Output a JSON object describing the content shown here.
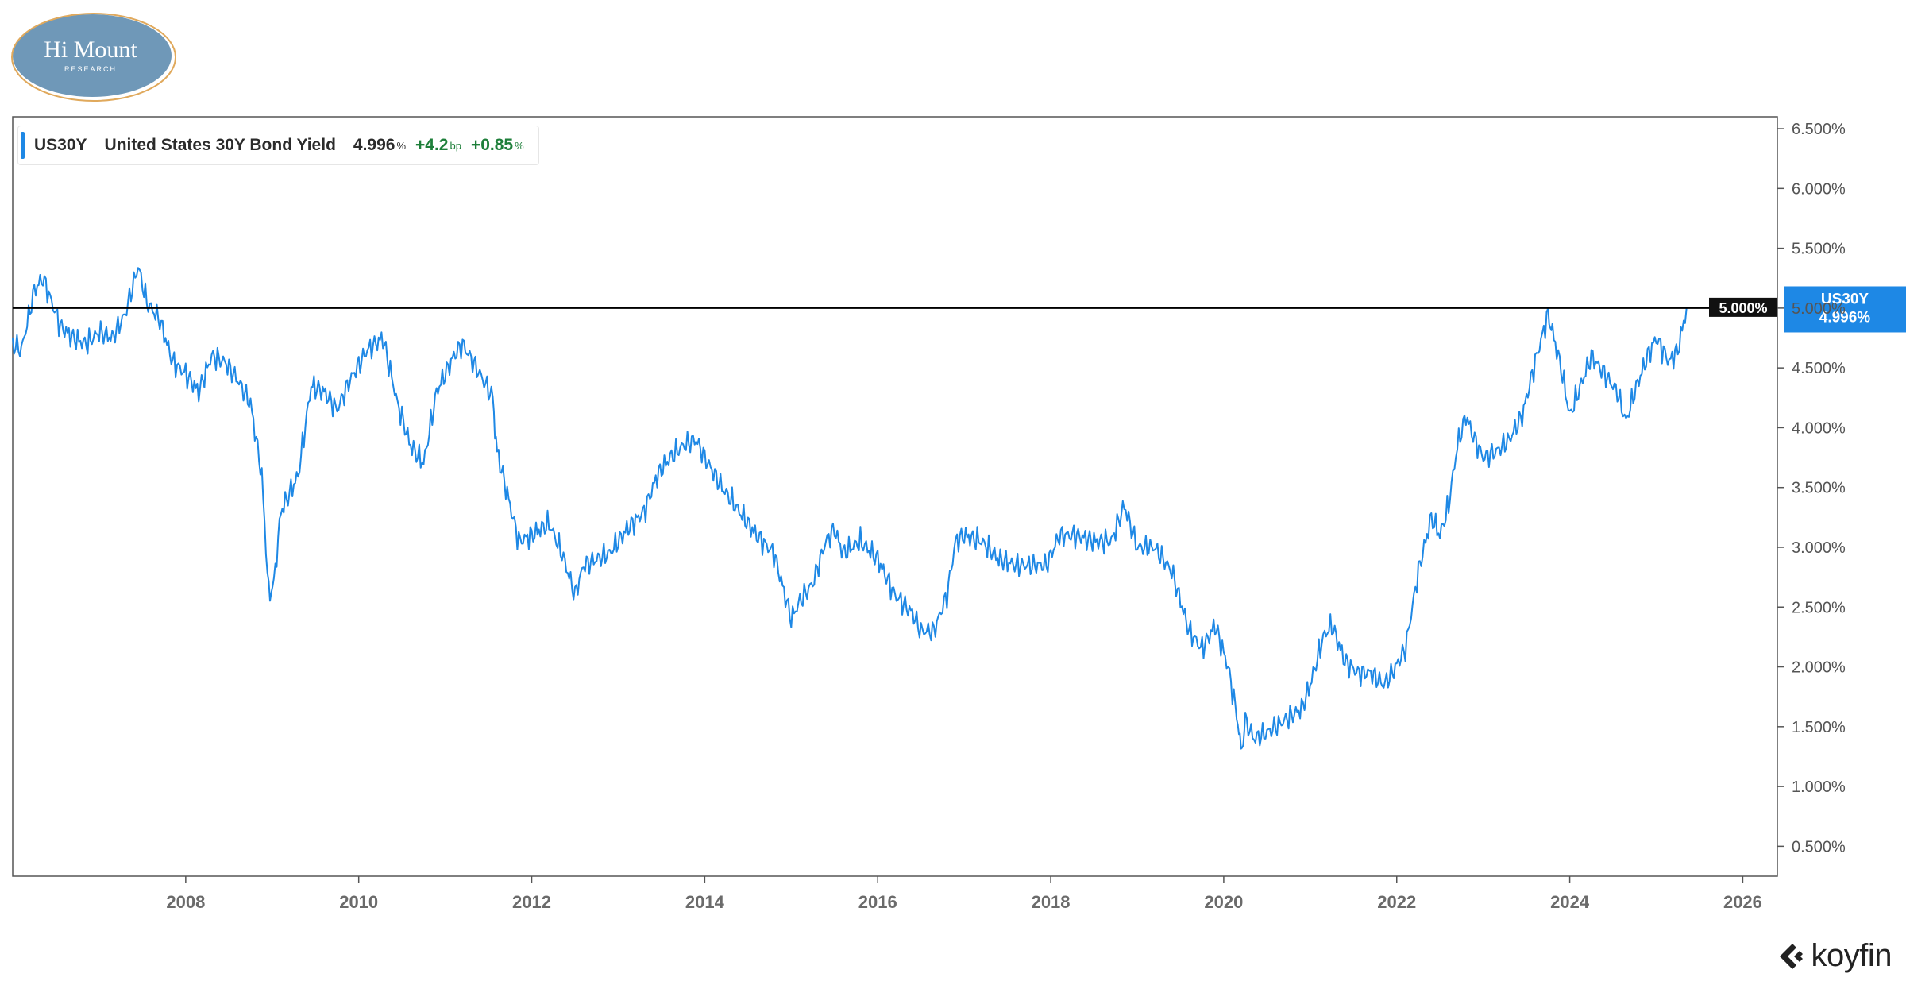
{
  "logo": {
    "line1": "Hi Mount",
    "line2": "RESEARCH"
  },
  "legend": {
    "ticker": "US30Y",
    "name": "United States 30Y Bond Yield",
    "value": "4.996",
    "value_unit": "%",
    "change_bp": "+4.2",
    "change_bp_unit": "bp",
    "change_pct": "+0.85",
    "change_pct_unit": "%"
  },
  "reference_line": {
    "value": 5.0,
    "label": "5.000%"
  },
  "last_tag": {
    "ticker": "US30Y",
    "value": "4.996%"
  },
  "brand": "koyfin",
  "colors": {
    "series": "#1e88e5",
    "reference": "#000000",
    "tag_bg": "#1e88e5",
    "refl_bg": "#111111",
    "positive": "#1e7f3a"
  },
  "chart_data": {
    "type": "line",
    "title": "",
    "xlabel": "",
    "ylabel": "",
    "xlim": [
      2006.0,
      2026.4
    ],
    "ylim": [
      0.25,
      6.6
    ],
    "x_ticks": [
      2008,
      2010,
      2012,
      2014,
      2016,
      2018,
      2020,
      2022,
      2024,
      2026
    ],
    "y_ticks": [
      0.5,
      1.0,
      1.5,
      2.0,
      2.5,
      3.0,
      3.5,
      4.0,
      4.5,
      5.0,
      5.5,
      6.0,
      6.5
    ],
    "y_tick_labels": [
      "0.500%",
      "1.000%",
      "1.500%",
      "2.000%",
      "2.500%",
      "3.000%",
      "3.500%",
      "4.000%",
      "4.500%",
      "5.000%",
      "5.500%",
      "6.000%",
      "6.500%"
    ],
    "series": [
      {
        "name": "US30Y",
        "x": [
          2006.0,
          2006.1,
          2006.25,
          2006.35,
          2006.45,
          2006.55,
          2006.7,
          2006.85,
          2007.0,
          2007.15,
          2007.3,
          2007.45,
          2007.55,
          2007.7,
          2007.85,
          2008.0,
          2008.15,
          2008.3,
          2008.45,
          2008.6,
          2008.75,
          2008.88,
          2008.96,
          2009.02,
          2009.1,
          2009.3,
          2009.45,
          2009.6,
          2009.75,
          2009.9,
          2010.1,
          2010.28,
          2010.45,
          2010.6,
          2010.75,
          2010.9,
          2011.1,
          2011.2,
          2011.4,
          2011.55,
          2011.6,
          2011.7,
          2011.85,
          2012.0,
          2012.2,
          2012.35,
          2012.5,
          2012.6,
          2012.75,
          2012.9,
          2013.1,
          2013.3,
          2013.45,
          2013.6,
          2013.75,
          2013.9,
          2014.0,
          2014.2,
          2014.4,
          2014.6,
          2014.8,
          2015.0,
          2015.1,
          2015.25,
          2015.4,
          2015.5,
          2015.6,
          2015.8,
          2016.0,
          2016.2,
          2016.4,
          2016.5,
          2016.65,
          2016.8,
          2016.9,
          2017.0,
          2017.2,
          2017.4,
          2017.6,
          2017.8,
          2017.95,
          2018.1,
          2018.3,
          2018.5,
          2018.7,
          2018.85,
          2019.0,
          2019.2,
          2019.4,
          2019.6,
          2019.75,
          2019.9,
          2020.05,
          2020.15,
          2020.2,
          2020.25,
          2020.35,
          2020.5,
          2020.7,
          2020.9,
          2021.0,
          2021.15,
          2021.25,
          2021.4,
          2021.55,
          2021.7,
          2021.85,
          2021.95,
          2022.1,
          2022.25,
          2022.4,
          2022.5,
          2022.6,
          2022.7,
          2022.8,
          2022.9,
          2023.0,
          2023.15,
          2023.3,
          2023.45,
          2023.6,
          2023.75,
          2023.8,
          2023.9,
          2024.0,
          2024.1,
          2024.25,
          2024.4,
          2024.55,
          2024.65,
          2024.75,
          2024.9,
          2025.0,
          2025.15,
          2025.25,
          2025.35
        ],
        "y": [
          4.7,
          4.65,
          5.15,
          5.25,
          5.05,
          4.85,
          4.75,
          4.7,
          4.8,
          4.75,
          4.95,
          5.35,
          5.05,
          4.9,
          4.55,
          4.45,
          4.3,
          4.6,
          4.55,
          4.4,
          4.2,
          3.6,
          2.6,
          2.7,
          3.3,
          3.6,
          4.35,
          4.3,
          4.15,
          4.4,
          4.65,
          4.75,
          4.2,
          3.85,
          3.7,
          4.3,
          4.6,
          4.7,
          4.45,
          4.25,
          3.8,
          3.5,
          3.05,
          3.1,
          3.2,
          2.95,
          2.6,
          2.85,
          2.9,
          2.95,
          3.15,
          3.3,
          3.6,
          3.75,
          3.85,
          3.9,
          3.75,
          3.5,
          3.3,
          3.1,
          2.95,
          2.4,
          2.55,
          2.7,
          3.05,
          3.15,
          2.95,
          3.05,
          2.9,
          2.6,
          2.45,
          2.3,
          2.3,
          2.6,
          3.05,
          3.1,
          3.05,
          2.9,
          2.85,
          2.85,
          2.85,
          3.1,
          3.1,
          3.05,
          3.05,
          3.35,
          3.0,
          3.0,
          2.8,
          2.3,
          2.15,
          2.35,
          2.0,
          1.6,
          1.3,
          1.55,
          1.4,
          1.45,
          1.55,
          1.65,
          1.85,
          2.25,
          2.35,
          2.05,
          1.95,
          1.95,
          1.85,
          1.95,
          2.15,
          2.8,
          3.25,
          3.1,
          3.35,
          3.85,
          4.1,
          3.9,
          3.75,
          3.8,
          3.9,
          4.1,
          4.55,
          4.95,
          4.8,
          4.5,
          4.1,
          4.3,
          4.6,
          4.45,
          4.3,
          4.05,
          4.3,
          4.6,
          4.75,
          4.55,
          4.65,
          4.996
        ]
      }
    ]
  }
}
